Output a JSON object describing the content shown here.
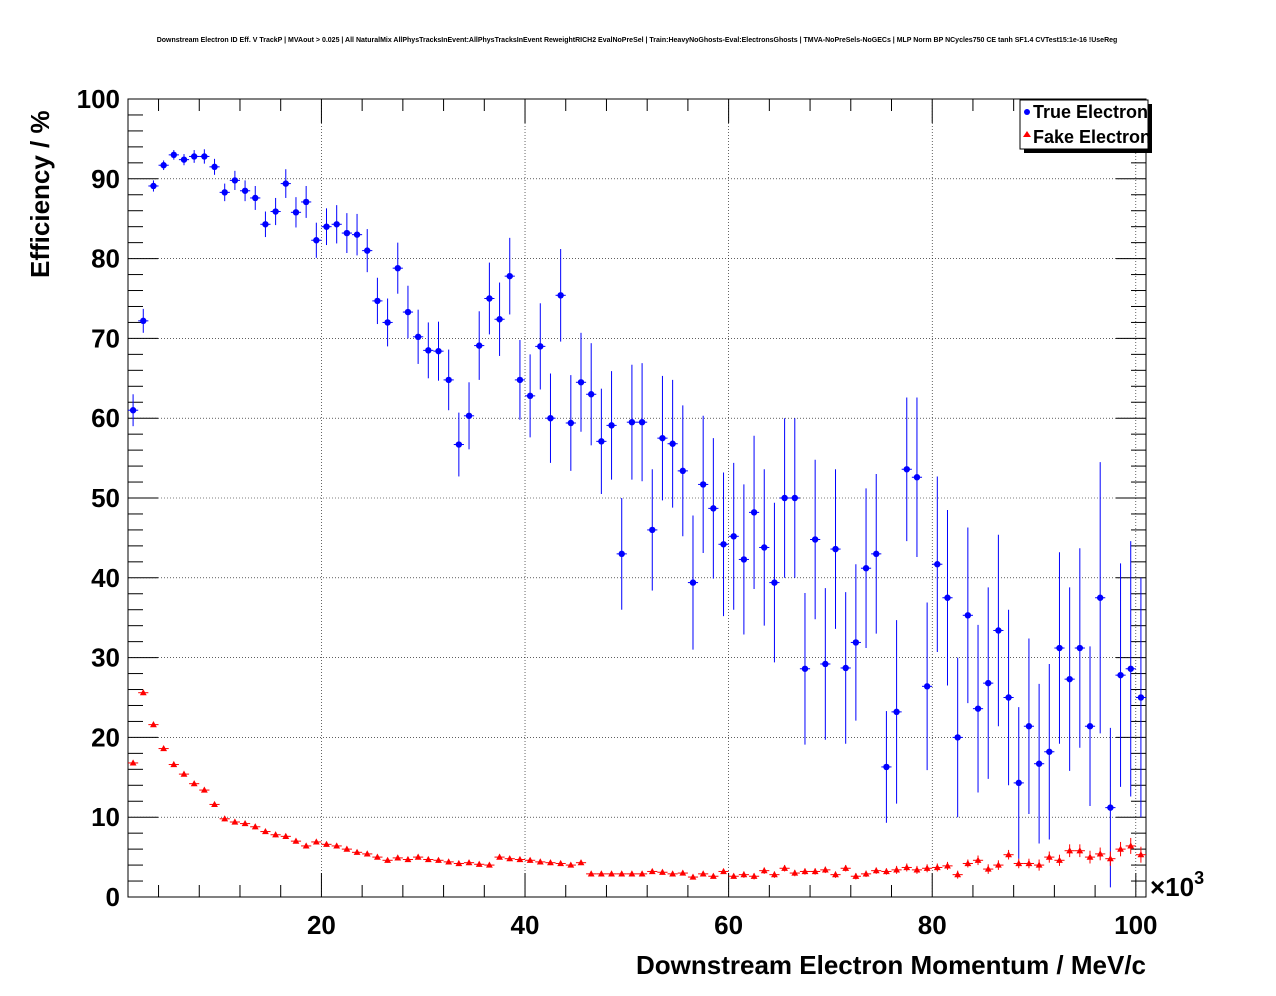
{
  "chart_data": {
    "type": "scatter",
    "title": "Downstream Electron ID Eff. V TrackP | MVAout > 0.025 | All NaturalMix AllPhysTracksInEvent:AllPhysTracksInEvent ReweightRICH2 EvalNoPreSel | Train:HeavyNoGhosts-Eval:ElectronsGhosts | TMVA-NoPreSels-NoGECs | MLP Norm BP NCycles750 CE tanh SF1.4 CVTest15:1e-16 !UseReg",
    "xlabel": "Downstream Electron Momentum / MeV/c",
    "ylabel": "Efficiency / %",
    "x_exponent_label": "×10",
    "x_exponent_power": "3",
    "xlim": [
      1,
      101
    ],
    "ylim": [
      0,
      100
    ],
    "x_ticks": [
      20,
      40,
      60,
      80,
      100
    ],
    "y_ticks": [
      0,
      10,
      20,
      30,
      40,
      50,
      60,
      70,
      80,
      90,
      100
    ],
    "grid": true,
    "legend_position": "top-right",
    "colors": {
      "true": "#0000ff",
      "fake": "#ff0000"
    },
    "series": [
      {
        "name": "True Electron",
        "marker": "circle",
        "x": [
          1.5,
          2.5,
          3.5,
          4.5,
          5.5,
          6.5,
          7.5,
          8.5,
          9.5,
          10.5,
          11.5,
          12.5,
          13.5,
          14.5,
          15.5,
          16.5,
          17.5,
          18.5,
          19.5,
          20.5,
          21.5,
          22.5,
          23.5,
          24.5,
          25.5,
          26.5,
          27.5,
          28.5,
          29.5,
          30.5,
          31.5,
          32.5,
          33.5,
          34.5,
          35.5,
          36.5,
          37.5,
          38.5,
          39.5,
          40.5,
          41.5,
          42.5,
          43.5,
          44.5,
          45.5,
          46.5,
          47.5,
          48.5,
          49.5,
          50.5,
          51.5,
          52.5,
          53.5,
          54.5,
          55.5,
          56.5,
          57.5,
          58.5,
          59.5,
          60.5,
          61.5,
          62.5,
          63.5,
          64.5,
          65.5,
          66.5,
          67.5,
          68.5,
          69.5,
          70.5,
          71.5,
          72.5,
          73.5,
          74.5,
          75.5,
          76.5,
          77.5,
          78.5,
          79.5,
          80.5,
          81.5,
          82.5,
          83.5,
          84.5,
          85.5,
          86.5,
          87.5,
          88.5,
          89.5,
          90.5,
          91.5,
          92.5,
          93.5,
          94.5,
          95.5,
          96.5,
          97.5,
          98.5,
          99.5,
          100.5
        ],
        "y": [
          61.0,
          72.2,
          89.1,
          91.7,
          93.0,
          92.4,
          92.8,
          92.8,
          91.5,
          88.3,
          89.8,
          88.5,
          87.6,
          84.3,
          85.9,
          89.4,
          85.8,
          87.1,
          82.3,
          84.0,
          84.3,
          83.2,
          83.0,
          81.0,
          74.7,
          72.0,
          78.8,
          73.3,
          70.2,
          68.5,
          68.4,
          64.8,
          56.7,
          60.3,
          69.1,
          75.0,
          72.4,
          77.8,
          64.8,
          62.8,
          69.0,
          60.0,
          75.4,
          59.4,
          64.5,
          63.0,
          57.1,
          59.1,
          43.0,
          59.5,
          59.5,
          46.0,
          57.5,
          56.8,
          53.4,
          39.4,
          51.7,
          48.7,
          44.2,
          45.2,
          42.3,
          48.2,
          43.8,
          39.4,
          50.0,
          50.0,
          28.6,
          44.8,
          29.2,
          43.6,
          28.7,
          31.9,
          41.2,
          43.0,
          16.3,
          23.2,
          53.6,
          52.6,
          26.4,
          41.7,
          37.5,
          20.0,
          35.3,
          23.6,
          26.8,
          33.4,
          25.0,
          14.3,
          21.4,
          16.7,
          18.2,
          31.2,
          27.3,
          31.2,
          21.4,
          37.5,
          11.2,
          27.8,
          28.6,
          25.0
        ],
        "err": [
          2.0,
          1.5,
          0.7,
          0.6,
          0.6,
          0.7,
          0.8,
          0.9,
          1.0,
          1.1,
          1.2,
          1.3,
          1.5,
          1.6,
          1.7,
          1.8,
          1.9,
          2.0,
          2.2,
          2.3,
          2.4,
          2.5,
          2.6,
          2.7,
          2.9,
          3.0,
          3.2,
          3.3,
          3.4,
          3.5,
          3.7,
          3.8,
          4.0,
          4.2,
          4.3,
          4.5,
          4.6,
          4.8,
          5.0,
          5.2,
          5.4,
          5.6,
          5.8,
          6.0,
          6.2,
          6.4,
          6.6,
          6.8,
          7.0,
          7.2,
          7.4,
          7.6,
          7.8,
          8.0,
          8.2,
          8.4,
          8.6,
          8.8,
          9.0,
          9.2,
          9.4,
          9.6,
          9.8,
          10.0,
          10.0,
          10.0,
          9.5,
          10.0,
          9.5,
          10.0,
          9.5,
          9.8,
          10.0,
          10.0,
          7.0,
          11.5,
          9.0,
          10.0,
          10.5,
          11.0,
          11.0,
          10.0,
          11.0,
          10.5,
          12.0,
          12.0,
          11.0,
          9.5,
          11.0,
          10.0,
          11.0,
          12.0,
          11.5,
          12.5,
          10.0,
          17.0,
          10.0,
          14.0,
          16.0,
          15.0
        ]
      },
      {
        "name": "Fake Electron",
        "marker": "triangle",
        "x": [
          1.5,
          2.5,
          3.5,
          4.5,
          5.5,
          6.5,
          7.5,
          8.5,
          9.5,
          10.5,
          11.5,
          12.5,
          13.5,
          14.5,
          15.5,
          16.5,
          17.5,
          18.5,
          19.5,
          20.5,
          21.5,
          22.5,
          23.5,
          24.5,
          25.5,
          26.5,
          27.5,
          28.5,
          29.5,
          30.5,
          31.5,
          32.5,
          33.5,
          34.5,
          35.5,
          36.5,
          37.5,
          38.5,
          39.5,
          40.5,
          41.5,
          42.5,
          43.5,
          44.5,
          45.5,
          46.5,
          47.5,
          48.5,
          49.5,
          50.5,
          51.5,
          52.5,
          53.5,
          54.5,
          55.5,
          56.5,
          57.5,
          58.5,
          59.5,
          60.5,
          61.5,
          62.5,
          63.5,
          64.5,
          65.5,
          66.5,
          67.5,
          68.5,
          69.5,
          70.5,
          71.5,
          72.5,
          73.5,
          74.5,
          75.5,
          76.5,
          77.5,
          78.5,
          79.5,
          80.5,
          81.5,
          82.5,
          83.5,
          84.5,
          85.5,
          86.5,
          87.5,
          88.5,
          89.5,
          90.5,
          91.5,
          92.5,
          93.5,
          94.5,
          95.5,
          96.5,
          97.5,
          98.5,
          99.5,
          100.5
        ],
        "y": [
          16.8,
          25.6,
          21.6,
          18.6,
          16.6,
          15.4,
          14.2,
          13.4,
          11.6,
          9.8,
          9.4,
          9.2,
          8.8,
          8.2,
          7.8,
          7.6,
          7.0,
          6.4,
          6.9,
          6.6,
          6.4,
          6.0,
          5.6,
          5.4,
          5.0,
          4.6,
          4.9,
          4.7,
          5.0,
          4.7,
          4.6,
          4.4,
          4.2,
          4.3,
          4.1,
          4.0,
          5.0,
          4.8,
          4.7,
          4.6,
          4.4,
          4.3,
          4.2,
          4.0,
          4.3,
          2.9,
          2.9,
          2.9,
          2.9,
          2.9,
          2.9,
          3.2,
          3.1,
          2.9,
          3.0,
          2.5,
          2.9,
          2.6,
          3.2,
          2.6,
          2.8,
          2.6,
          3.3,
          2.8,
          3.6,
          3.0,
          3.2,
          3.2,
          3.4,
          2.8,
          3.6,
          2.6,
          2.9,
          3.3,
          3.2,
          3.4,
          3.7,
          3.4,
          3.6,
          3.7,
          3.9,
          2.8,
          4.2,
          4.6,
          3.5,
          4.0,
          5.3,
          4.2,
          4.2,
          4.0,
          5.0,
          4.6,
          5.8,
          5.8,
          5.0,
          5.4,
          4.8,
          6.0,
          6.4,
          5.3
        ],
        "err": [
          0.3,
          0.3,
          0.3,
          0.3,
          0.3,
          0.3,
          0.3,
          0.3,
          0.3,
          0.3,
          0.3,
          0.3,
          0.3,
          0.3,
          0.3,
          0.3,
          0.3,
          0.3,
          0.3,
          0.3,
          0.3,
          0.3,
          0.3,
          0.3,
          0.3,
          0.3,
          0.3,
          0.3,
          0.3,
          0.3,
          0.3,
          0.3,
          0.3,
          0.3,
          0.3,
          0.3,
          0.3,
          0.3,
          0.3,
          0.3,
          0.3,
          0.3,
          0.3,
          0.3,
          0.3,
          0.3,
          0.3,
          0.3,
          0.3,
          0.3,
          0.3,
          0.3,
          0.3,
          0.3,
          0.3,
          0.3,
          0.3,
          0.3,
          0.3,
          0.3,
          0.4,
          0.4,
          0.4,
          0.4,
          0.4,
          0.4,
          0.4,
          0.4,
          0.4,
          0.4,
          0.4,
          0.4,
          0.4,
          0.4,
          0.4,
          0.5,
          0.5,
          0.5,
          0.5,
          0.5,
          0.5,
          0.5,
          0.5,
          0.6,
          0.6,
          0.6,
          0.6,
          0.6,
          0.6,
          0.7,
          0.7,
          0.7,
          0.8,
          0.8,
          0.8,
          0.8,
          0.9,
          0.9,
          1.0,
          1.0
        ]
      }
    ]
  }
}
